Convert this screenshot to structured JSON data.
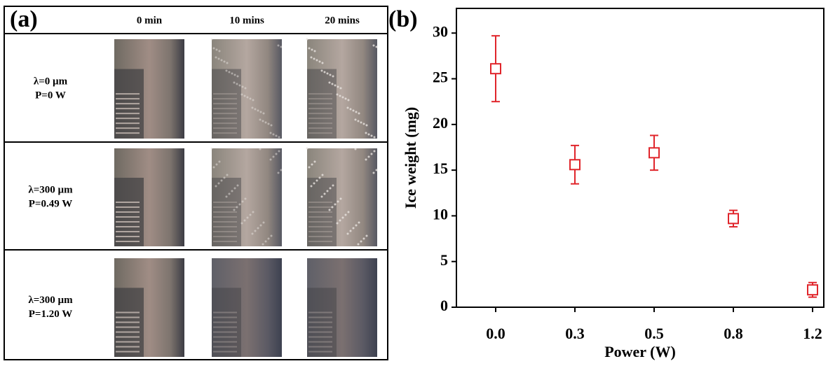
{
  "panel_a": {
    "label": "(a)",
    "columns": [
      "0 min",
      "10 mins",
      "20 mins"
    ],
    "rows": [
      {
        "lines": [
          "λ=0 µm",
          "P=0 W"
        ]
      },
      {
        "lines": [
          "λ=300 µm",
          "P=0.49 W"
        ]
      },
      {
        "lines": [
          "λ=300 µm",
          "P=1.20 W"
        ]
      }
    ]
  },
  "chart_data": {
    "type": "scatter",
    "panel_label": "(b)",
    "x_label": "Power (W)",
    "y_label": "Ice weight (mg)",
    "categories": [
      "0.0",
      "0.3",
      "0.5",
      "0.8",
      "1.2"
    ],
    "values": [
      26.1,
      15.6,
      16.9,
      9.7,
      1.9
    ],
    "errors": [
      3.6,
      2.1,
      1.9,
      0.9,
      0.8
    ],
    "color": "#e0252b",
    "ylim": [
      0,
      32.7
    ],
    "yticks": [
      0,
      5,
      10,
      15,
      20,
      25,
      30
    ]
  }
}
